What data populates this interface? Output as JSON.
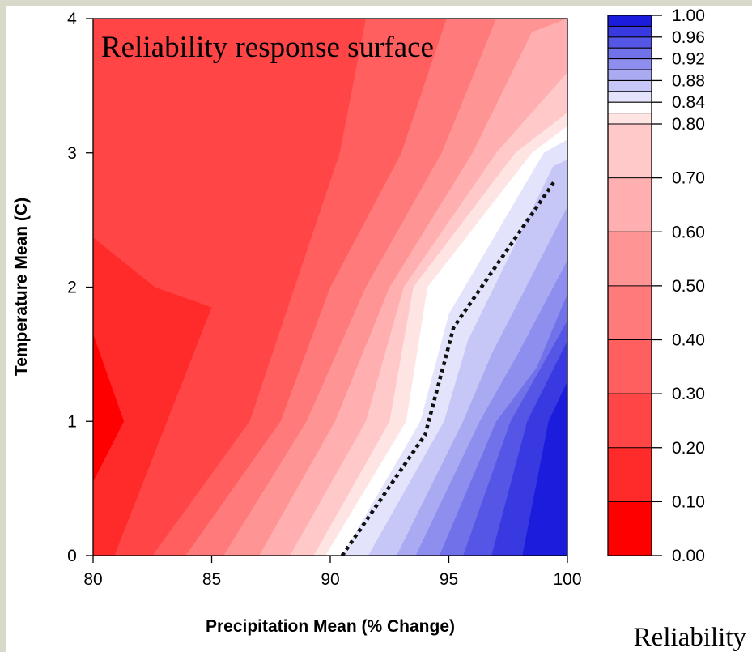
{
  "chart_data": {
    "type": "heatmap",
    "title": "Reliability response surface",
    "xlabel": "Precipitation Mean (% Change)",
    "ylabel": "Temperature Mean (C)",
    "xlim": [
      80,
      100
    ],
    "ylim": [
      0,
      4
    ],
    "xticks": [
      "80",
      "85",
      "90",
      "95",
      "100"
    ],
    "yticks": [
      "0",
      "1",
      "2",
      "3",
      "4"
    ],
    "grid": false,
    "colorbar": {
      "title": "Reliability",
      "tick_labels": [
        "0.00",
        "0.10",
        "0.20",
        "0.30",
        "0.40",
        "0.50",
        "0.60",
        "0.70",
        "0.80",
        "0.84",
        "0.88",
        "0.92",
        "0.96",
        "1.00"
      ],
      "levels": [
        0.0,
        0.1,
        0.2,
        0.3,
        0.4,
        0.5,
        0.6,
        0.7,
        0.8,
        0.82,
        0.84,
        0.86,
        0.88,
        0.9,
        0.92,
        0.94,
        0.96,
        0.98,
        1.0
      ],
      "colors": [
        "#ff0000",
        "#ff2a2a",
        "#ff4545",
        "#ff5f5f",
        "#ff7a7a",
        "#ff9494",
        "#ffafaf",
        "#ffc9c9",
        "#ffe4e4",
        "#ffffff",
        "#e3e3fb",
        "#c6c6f7",
        "#aaaaf2",
        "#8e8eee",
        "#7171ea",
        "#5555e6",
        "#3939e2",
        "#1c1cdd"
      ]
    },
    "contour_boundaries": [
      {
        "level": 0.1,
        "points": [
          [
            80.0,
            0.55
          ],
          [
            81.3,
            1.0
          ],
          [
            80.0,
            1.65
          ]
        ]
      },
      {
        "level": 0.2,
        "points": [
          [
            80.9,
            0.0
          ],
          [
            85.0,
            1.85
          ],
          [
            82.6,
            2.0
          ],
          [
            80.0,
            2.37
          ]
        ]
      },
      {
        "level": 0.3,
        "points": [
          [
            82.5,
            0.0
          ],
          [
            86.6,
            1.0
          ],
          [
            88.5,
            2.0
          ],
          [
            90.4,
            3.0
          ],
          [
            91.5,
            4.0
          ]
        ]
      },
      {
        "level": 0.4,
        "points": [
          [
            83.9,
            0.0
          ],
          [
            87.9,
            1.0
          ],
          [
            90.0,
            2.0
          ],
          [
            93.0,
            3.0
          ],
          [
            94.9,
            4.0
          ]
        ]
      },
      {
        "level": 0.5,
        "points": [
          [
            85.5,
            0.0
          ],
          [
            89.0,
            1.0
          ],
          [
            91.5,
            2.0
          ],
          [
            94.7,
            3.0
          ],
          [
            97.0,
            4.0
          ]
        ]
      },
      {
        "level": 0.6,
        "points": [
          [
            87.0,
            0.0
          ],
          [
            90.2,
            1.0
          ],
          [
            92.5,
            2.0
          ],
          [
            96.0,
            3.0
          ],
          [
            98.5,
            3.9
          ],
          [
            100.0,
            4.0
          ]
        ]
      },
      {
        "level": 0.7,
        "points": [
          [
            88.3,
            0.0
          ],
          [
            91.5,
            1.0
          ],
          [
            93.1,
            2.0
          ],
          [
            97.0,
            3.0
          ],
          [
            100.0,
            3.6
          ]
        ]
      },
      {
        "level": 0.8,
        "points": [
          [
            89.3,
            0.0
          ],
          [
            92.5,
            1.0
          ],
          [
            93.5,
            2.0
          ],
          [
            97.8,
            3.0
          ],
          [
            100.0,
            3.3
          ]
        ]
      },
      {
        "level": 0.82,
        "points": [
          [
            89.8,
            0.0
          ],
          [
            93.2,
            1.0
          ],
          [
            94.1,
            2.0
          ],
          [
            98.5,
            3.0
          ],
          [
            100.0,
            3.2
          ]
        ]
      },
      {
        "level": 0.84,
        "points": [
          [
            90.5,
            0.0
          ],
          [
            93.8,
            1.0
          ],
          [
            95.0,
            1.8
          ],
          [
            99.0,
            3.0
          ],
          [
            100.0,
            3.1
          ]
        ]
      },
      {
        "level": 0.86,
        "points": [
          [
            91.6,
            0.0
          ],
          [
            94.8,
            1.0
          ],
          [
            95.8,
            1.6
          ],
          [
            99.4,
            2.9
          ],
          [
            100.0,
            2.95
          ]
        ]
      },
      {
        "level": 0.88,
        "points": [
          [
            92.8,
            0.0
          ],
          [
            95.6,
            1.0
          ],
          [
            96.8,
            1.5
          ],
          [
            100.0,
            2.6
          ]
        ]
      },
      {
        "level": 0.9,
        "points": [
          [
            93.6,
            0.0
          ],
          [
            96.3,
            1.0
          ],
          [
            97.9,
            1.5
          ],
          [
            100.0,
            2.2
          ]
        ]
      },
      {
        "level": 0.92,
        "points": [
          [
            94.6,
            0.0
          ],
          [
            97.0,
            1.0
          ],
          [
            98.7,
            1.4
          ],
          [
            100.0,
            1.95
          ]
        ]
      },
      {
        "level": 0.94,
        "points": [
          [
            95.6,
            0.0
          ],
          [
            97.6,
            1.0
          ],
          [
            99.2,
            1.5
          ],
          [
            100.0,
            1.75
          ]
        ]
      },
      {
        "level": 0.96,
        "points": [
          [
            96.8,
            0.0
          ],
          [
            98.3,
            1.0
          ],
          [
            100.0,
            1.6
          ]
        ]
      },
      {
        "level": 0.98,
        "points": [
          [
            98.1,
            0.0
          ],
          [
            99.2,
            1.0
          ],
          [
            100.0,
            1.3
          ]
        ]
      }
    ],
    "threshold_line": {
      "style": "dotted",
      "points": [
        [
          90.5,
          0.0
        ],
        [
          94.0,
          0.9
        ],
        [
          95.2,
          1.7
        ],
        [
          99.5,
          2.8
        ]
      ]
    }
  }
}
